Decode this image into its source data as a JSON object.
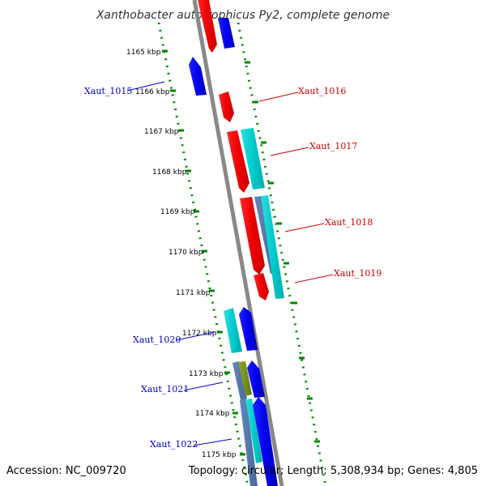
{
  "title": "Xanthobacter autotrophicus Py2, complete genome",
  "accession_label": "Accession: NC_009720",
  "summary": "Topology: circular; Length: 5,308,934 bp; Genes: 4,805",
  "colors": {
    "forward_strand": "#ff0000",
    "reverse_strand": "#0000ee",
    "cds_cyan": "#00cccc",
    "cds_slate": "#5577aa",
    "cds_olive": "#778822",
    "tick": "#008800",
    "backbone": "#888888"
  },
  "ticks": [
    "1165 kbp",
    "1166 kbp",
    "1167 kbp",
    "1168 kbp",
    "1169 kbp",
    "1170 kbp",
    "1171 kbp",
    "1172 kbp",
    "1173 kbp",
    "1174 kbp",
    "1175 kbp"
  ],
  "gene_labels": [
    {
      "text": "Xaut_1015",
      "strand": "reverse"
    },
    {
      "text": "Xaut_1016",
      "strand": "forward"
    },
    {
      "text": "Xaut_1017",
      "strand": "forward"
    },
    {
      "text": "Xaut_1018",
      "strand": "forward"
    },
    {
      "text": "Xaut_1019",
      "strand": "forward"
    },
    {
      "text": "Xaut_1020",
      "strand": "reverse"
    },
    {
      "text": "Xaut_1021",
      "strand": "reverse"
    },
    {
      "text": "Xaut_1022",
      "strand": "reverse"
    }
  ],
  "features": [
    {
      "strand": "forward",
      "track": "inner",
      "color": "red"
    },
    {
      "strand": "reverse",
      "track": "outer",
      "color": "blue"
    },
    {
      "strand": "reverse",
      "track": "inner",
      "color": "blue"
    },
    {
      "strand": "forward",
      "track": "inner",
      "color": "red"
    },
    {
      "strand": "forward",
      "track": "inner",
      "color": "red"
    },
    {
      "strand": "forward",
      "track": "outer",
      "color": "cyan"
    },
    {
      "strand": "forward",
      "track": "inner",
      "color": "red"
    },
    {
      "strand": "forward",
      "track": "outer",
      "color": "slate"
    },
    {
      "strand": "forward",
      "track": "outer",
      "color": "cyan"
    },
    {
      "strand": "forward",
      "track": "inner",
      "color": "red"
    },
    {
      "strand": "reverse",
      "track": "inner",
      "color": "cyan"
    },
    {
      "strand": "reverse",
      "track": "inner",
      "color": "blue"
    },
    {
      "strand": "reverse",
      "track": "inner",
      "color": "slate"
    },
    {
      "strand": "reverse",
      "track": "inner",
      "color": "olive"
    },
    {
      "strand": "reverse",
      "track": "inner",
      "color": "blue"
    },
    {
      "strand": "reverse",
      "track": "inner",
      "color": "slate"
    },
    {
      "strand": "reverse",
      "track": "inner",
      "color": "cyan"
    },
    {
      "strand": "reverse",
      "track": "inner",
      "color": "blue"
    }
  ]
}
